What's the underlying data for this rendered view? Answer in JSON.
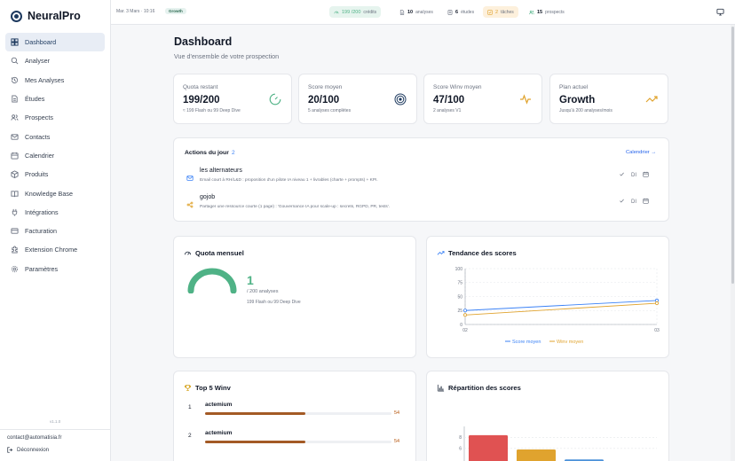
{
  "app": {
    "name": "NeuralPro"
  },
  "colors": {
    "brand": "#1e3a5f",
    "accent_green": "#4fb286",
    "blue": "#3b82f6",
    "orange": "#e0a32e",
    "red": "#e05252"
  },
  "sidebar": {
    "items": [
      {
        "label": "Dashboard",
        "icon": "dashboard-icon"
      },
      {
        "label": "Analyser",
        "icon": "search-icon"
      },
      {
        "label": "Mes Analyses",
        "icon": "history-icon"
      },
      {
        "label": "Études",
        "icon": "file-icon"
      },
      {
        "label": "Prospects",
        "icon": "users-icon"
      },
      {
        "label": "Contacts",
        "icon": "mail-icon"
      },
      {
        "label": "Calendrier",
        "icon": "calendar-icon"
      },
      {
        "label": "Produits",
        "icon": "box-icon"
      },
      {
        "label": "Knowledge Base",
        "icon": "book-icon"
      },
      {
        "label": "Intégrations",
        "icon": "plug-icon"
      },
      {
        "label": "Facturation",
        "icon": "card-icon"
      },
      {
        "label": "Extension Chrome",
        "icon": "extension-icon"
      },
      {
        "label": "Paramètres",
        "icon": "gear-icon"
      }
    ],
    "version": "v1.1.0",
    "email": "contact@automatisia.fr",
    "logout": "Déconnexion"
  },
  "topbar": {
    "date": "Mar. 3 Mars · 10:16",
    "plan_badge": "Growth",
    "pills": [
      {
        "value": "199 /200",
        "label": "crédits",
        "icon": "gauge-icon"
      },
      {
        "value": "10",
        "label": "analyses",
        "icon": "file-icon"
      },
      {
        "value": "6",
        "label": "études",
        "icon": "study-icon"
      },
      {
        "value": "2",
        "label": "tâches",
        "icon": "task-icon"
      },
      {
        "value": "15",
        "label": "prospects",
        "icon": "users-icon"
      }
    ]
  },
  "page": {
    "title": "Dashboard",
    "subtitle": "Vue d'ensemble de votre prospection"
  },
  "stats": [
    {
      "label": "Quota restant",
      "value": "199/200",
      "sub": "≈ 199 Flash ou 99 Deep Dive",
      "icon": "gauge-icon"
    },
    {
      "label": "Score moyen",
      "value": "20/100",
      "sub": "5 analyses complètes",
      "icon": "target-icon"
    },
    {
      "label": "Score Winv moyen",
      "value": "47/100",
      "sub": "2 analyses V1",
      "icon": "pulse-icon"
    },
    {
      "label": "Plan actuel",
      "value": "Growth",
      "sub": "Jusqu'à 200 analyses/mois",
      "icon": "trend-up-icon"
    }
  ],
  "actions": {
    "title": "Actions du jour",
    "count": "2",
    "calendar_link": "Calendrier →",
    "items": [
      {
        "name": "les alternateurs",
        "desc": "Email court à RH/L&D : proposition d'un pilote IA niveau 1 + livrables (charte + prompts) + KPI.",
        "icon": "mail-icon",
        "tag": "DI"
      },
      {
        "name": "gojob",
        "desc": "Partager une ressource courte (1 page) : 'Gouvernance IA pour scale-up : secrets, RGPD, PR, tests'.",
        "icon": "share-icon",
        "tag": "DI"
      }
    ]
  },
  "quota": {
    "title": "Quota mensuel",
    "used": "1",
    "of": "/ 200 analyses",
    "sub": "199 Flash ou 99 Deep Dive"
  },
  "trend": {
    "title": "Tendance des scores",
    "chart_data": {
      "type": "line",
      "x": [
        "02",
        "03"
      ],
      "series": [
        {
          "name": "Score moyen",
          "values": [
            25,
            43
          ],
          "color": "#3b82f6"
        },
        {
          "name": "Winv moyen",
          "values": [
            17,
            38
          ],
          "color": "#e0a32e"
        }
      ],
      "yticks": [
        0,
        25,
        50,
        75,
        100
      ],
      "ylim": [
        0,
        100
      ],
      "legend": "bottom"
    }
  },
  "top5": {
    "title": "Top 5 Winv",
    "items": [
      {
        "rank": "1",
        "name": "actemium",
        "score": "54",
        "fraction": 0.54
      },
      {
        "rank": "2",
        "name": "actemium",
        "score": "54",
        "fraction": 0.54
      }
    ]
  },
  "distribution": {
    "title": "Répartition des scores",
    "chart_data": {
      "type": "bar",
      "values": [
        8.4,
        5.8,
        4
      ],
      "colors": [
        "#e05252",
        "#e0a32e",
        "#4a90d9"
      ],
      "yticks": [
        3,
        6,
        8
      ]
    }
  }
}
